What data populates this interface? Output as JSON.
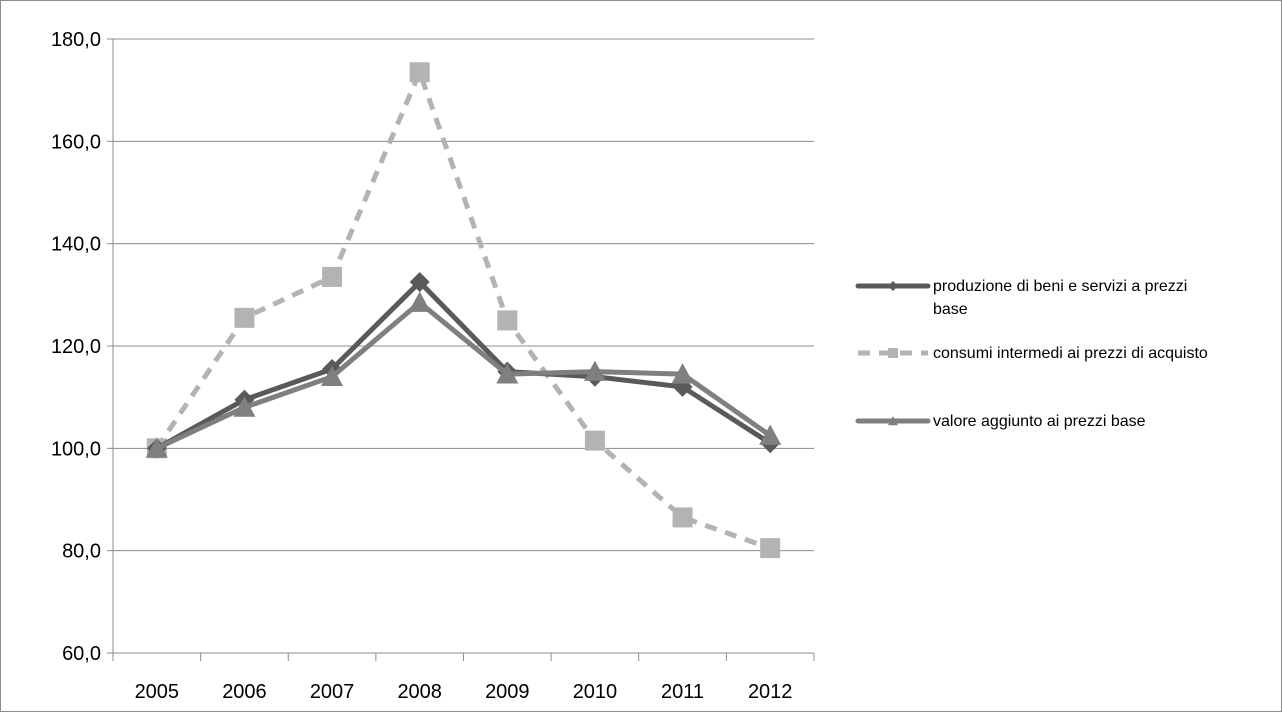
{
  "chart_data": {
    "type": "line",
    "title": "",
    "xlabel": "",
    "ylabel": "",
    "categories": [
      "2005",
      "2006",
      "2007",
      "2008",
      "2009",
      "2010",
      "2011",
      "2012"
    ],
    "ylim": [
      60,
      180
    ],
    "yticks": [
      "60,0",
      "80,0",
      "100,0",
      "120,0",
      "140,0",
      "160,0",
      "180,0"
    ],
    "grid": true,
    "legend_position": "right",
    "series": [
      {
        "name": "produzione di beni e servizi a prezzi base",
        "legend_lines": [
          "produzione di beni e servizi a prezzi",
          "base"
        ],
        "values": [
          100.0,
          109.5,
          115.5,
          132.5,
          115.0,
          114.0,
          112.0,
          101.0
        ],
        "color": "#5a5a5a",
        "marker": "diamond",
        "dash": false
      },
      {
        "name": "consumi intermedi ai prezzi di acquisto",
        "legend_lines": [
          "consumi intermedi ai prezzi di acquisto"
        ],
        "values": [
          100.0,
          125.5,
          133.5,
          173.5,
          125.0,
          101.5,
          86.5,
          80.5
        ],
        "color": "#b3b3b3",
        "marker": "square",
        "dash": true
      },
      {
        "name": "valore aggiunto ai prezzi base",
        "legend_lines": [
          "valore aggiunto ai prezzi base"
        ],
        "values": [
          100.0,
          108.0,
          114.0,
          128.5,
          114.5,
          115.0,
          114.5,
          102.5
        ],
        "color": "#7f7f7f",
        "marker": "triangle",
        "dash": false
      }
    ]
  }
}
